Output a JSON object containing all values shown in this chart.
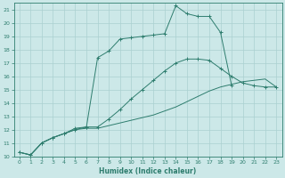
{
  "xlabel": "Humidex (Indice chaleur)",
  "bg_color": "#cce8e8",
  "line_color": "#2e7d6e",
  "grid_color": "#aad0d0",
  "xlim": [
    -0.5,
    23.5
  ],
  "ylim": [
    10,
    21.5
  ],
  "xticks": [
    0,
    1,
    2,
    3,
    4,
    5,
    6,
    7,
    8,
    9,
    10,
    11,
    12,
    13,
    14,
    15,
    16,
    17,
    18,
    19,
    20,
    21,
    22,
    23
  ],
  "yticks": [
    10,
    11,
    12,
    13,
    14,
    15,
    16,
    17,
    18,
    19,
    20,
    21
  ],
  "line1_x": [
    0,
    1,
    2,
    3,
    4,
    5,
    6,
    7,
    8,
    9,
    10,
    11,
    12,
    13,
    14,
    15,
    16,
    17,
    18,
    19,
    20,
    21,
    22,
    23
  ],
  "line1_y": [
    10.3,
    10.1,
    11.0,
    11.4,
    11.7,
    12.0,
    12.1,
    12.1,
    12.3,
    12.5,
    12.7,
    12.9,
    13.1,
    13.4,
    13.7,
    14.1,
    14.5,
    14.9,
    15.2,
    15.4,
    15.6,
    15.7,
    15.8,
    15.2
  ],
  "line2_x": [
    0,
    1,
    2,
    3,
    4,
    5,
    6,
    7,
    8,
    9,
    10,
    11,
    12,
    13,
    14,
    15,
    16,
    17,
    18,
    19,
    20,
    21,
    22,
    23
  ],
  "line2_y": [
    10.3,
    10.1,
    11.0,
    11.4,
    11.7,
    12.0,
    12.2,
    12.2,
    12.8,
    13.5,
    14.3,
    15.0,
    15.7,
    16.4,
    17.0,
    17.3,
    17.3,
    17.2,
    16.6,
    16.0,
    15.5,
    15.3,
    15.2,
    15.2
  ],
  "line3_x": [
    0,
    1,
    2,
    3,
    4,
    5,
    6,
    7,
    8,
    9,
    10,
    11,
    12,
    13,
    14,
    15,
    16,
    17,
    18,
    19
  ],
  "line3_y": [
    10.3,
    10.1,
    11.0,
    11.4,
    11.7,
    12.1,
    12.2,
    17.4,
    17.9,
    18.8,
    18.9,
    19.0,
    19.1,
    19.2,
    21.3,
    20.7,
    20.5,
    20.5,
    19.3,
    15.3
  ]
}
